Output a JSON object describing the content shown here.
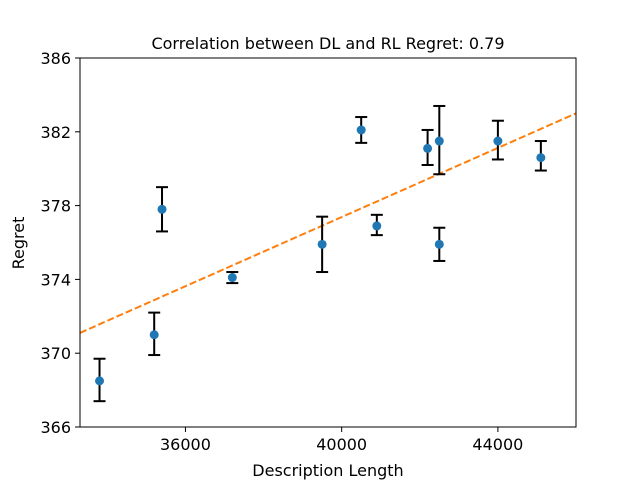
{
  "chart_data": {
    "type": "scatter",
    "title": "Correlation between DL and RL Regret: 0.79",
    "xlabel": "Description Length",
    "ylabel": "Regret",
    "xlim": [
      33300,
      46000
    ],
    "ylim": [
      366,
      386
    ],
    "xticks": [
      36000,
      40000,
      44000
    ],
    "yticks": [
      366,
      370,
      374,
      378,
      382,
      386
    ],
    "grid": false,
    "colors": {
      "points": "#1f77b4",
      "trend": "#ff7f0e",
      "errorbars": "#000000"
    },
    "points": [
      {
        "x": 33800,
        "y": 368.5,
        "err_low": 367.4,
        "err_high": 369.7
      },
      {
        "x": 35200,
        "y": 371.0,
        "err_low": 369.9,
        "err_high": 372.2
      },
      {
        "x": 35400,
        "y": 377.8,
        "err_low": 376.6,
        "err_high": 379.0
      },
      {
        "x": 37200,
        "y": 374.1,
        "err_low": 373.8,
        "err_high": 374.4
      },
      {
        "x": 39500,
        "y": 375.9,
        "err_low": 374.4,
        "err_high": 377.4
      },
      {
        "x": 40500,
        "y": 382.1,
        "err_low": 381.4,
        "err_high": 382.8
      },
      {
        "x": 40900,
        "y": 376.9,
        "err_low": 376.4,
        "err_high": 377.5
      },
      {
        "x": 42200,
        "y": 381.1,
        "err_low": 380.2,
        "err_high": 382.1
      },
      {
        "x": 42500,
        "y": 381.5,
        "err_low": 379.7,
        "err_high": 383.4
      },
      {
        "x": 42500,
        "y": 375.9,
        "err_low": 375.0,
        "err_high": 376.8
      },
      {
        "x": 44000,
        "y": 381.5,
        "err_low": 380.5,
        "err_high": 382.6
      },
      {
        "x": 45100,
        "y": 380.6,
        "err_low": 379.9,
        "err_high": 381.5
      }
    ],
    "trendline": {
      "x": [
        33300,
        46000
      ],
      "y": [
        371.1,
        383.0
      ]
    }
  }
}
